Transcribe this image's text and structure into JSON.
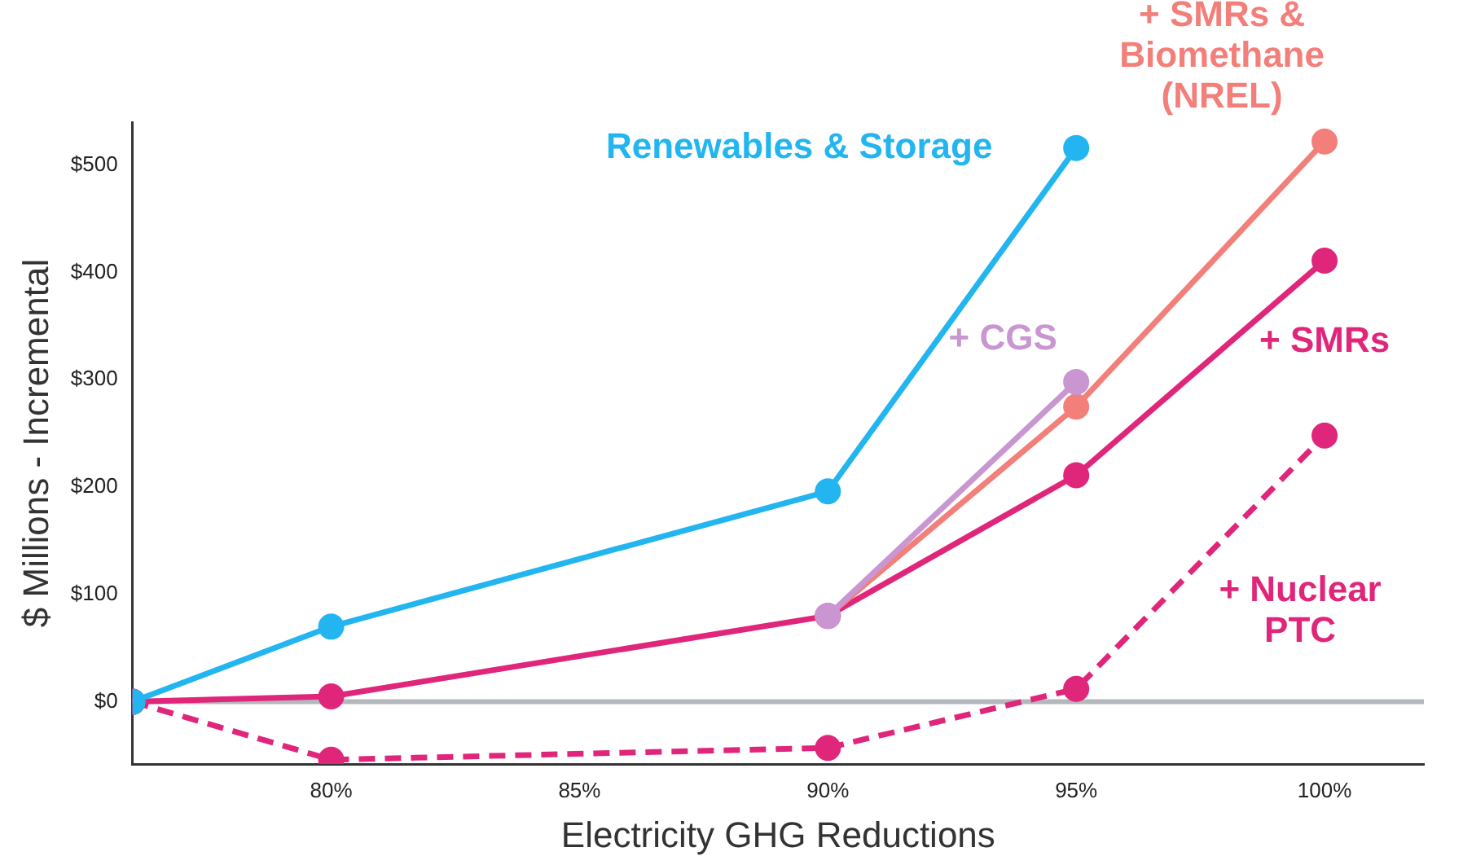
{
  "chart_data": {
    "type": "line",
    "xlabel": "Electricity GHG Reductions",
    "ylabel": "$ Millions - Incremental",
    "xlim": [
      76,
      102
    ],
    "xticks": [
      {
        "value": 80,
        "label": "80%"
      },
      {
        "value": 85,
        "label": "85%"
      },
      {
        "value": 90,
        "label": "90%"
      },
      {
        "value": 95,
        "label": "95%"
      },
      {
        "value": 100,
        "label": "100%"
      }
    ],
    "ylim": [
      -58,
      540
    ],
    "yticks": [
      {
        "value": 0,
        "label": "$0"
      },
      {
        "value": 100,
        "label": "$100"
      },
      {
        "value": 200,
        "label": "$200"
      },
      {
        "value": 300,
        "label": "$300"
      },
      {
        "value": 400,
        "label": "$400"
      },
      {
        "value": 500,
        "label": "$500"
      }
    ],
    "grid": false,
    "legend": false,
    "marker": "circle",
    "ref_lines": [
      {
        "axis": "y",
        "value": 0,
        "color": "#b4b8bd"
      }
    ],
    "series": [
      {
        "name": "Renewables & Storage",
        "color": "#22b5f0",
        "x": [
          76,
          80,
          90,
          95
        ],
        "values": [
          0,
          70,
          196,
          516
        ]
      },
      {
        "name": "+ CGS",
        "color": "#c996d2",
        "x": [
          90,
          95
        ],
        "values": [
          80,
          298
        ]
      },
      {
        "name": "+ SMRs & Biomethane (NREL)",
        "color": "#f27f7a",
        "x": [
          90,
          95,
          100
        ],
        "values": [
          80,
          275,
          522
        ]
      },
      {
        "name": "+ SMRs",
        "color": "#e0267a",
        "x": [
          76,
          80,
          90,
          95,
          100
        ],
        "values": [
          0,
          5,
          80,
          211,
          411
        ]
      },
      {
        "name": "+ Nuclear PTC",
        "color": "#e0267a",
        "line_style": "dashed",
        "x": [
          76,
          80,
          90,
          95,
          100
        ],
        "values": [
          0,
          -54,
          -43,
          12,
          248
        ]
      }
    ]
  }
}
